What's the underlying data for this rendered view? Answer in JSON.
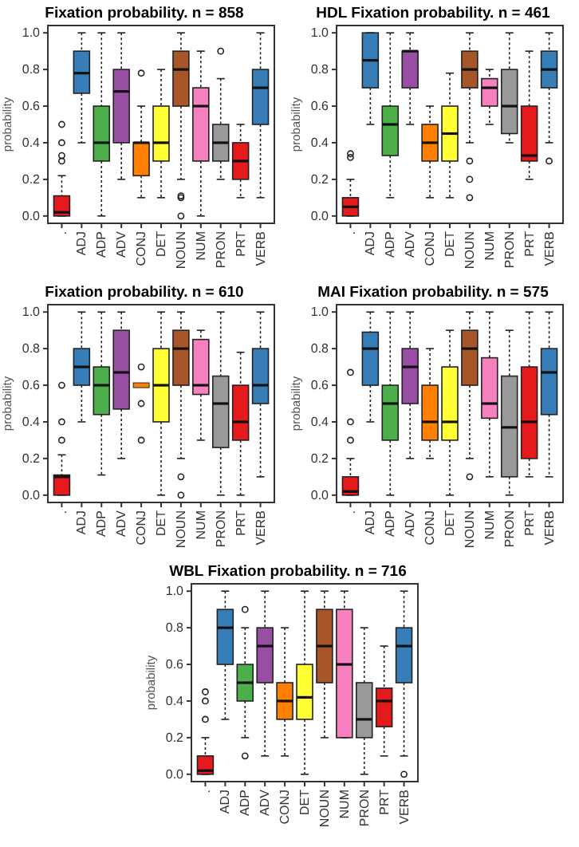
{
  "chart_data": [
    {
      "type": "box",
      "title": "Fixation probability. n = 858",
      "ylabel": "probability",
      "categories": [
        ".",
        "ADJ",
        "ADP",
        "ADV",
        "CONJ",
        "DET",
        "NOUN",
        "NUM",
        "PRON",
        "PRT",
        "VERB"
      ],
      "colors": [
        "#e41a1c",
        "#377eb8",
        "#4daf4a",
        "#984ea3",
        "#ff7f00",
        "#ffff33",
        "#a65628",
        "#f781bf",
        "#999999",
        "#e41a1c",
        "#377eb8"
      ],
      "ylim": [
        -0.04,
        1.04
      ],
      "yticks": [
        {
          "value": 0,
          "label": "0.0"
        },
        {
          "value": 0.2,
          "label": "0.2"
        },
        {
          "value": 0.4,
          "label": "0.4"
        },
        {
          "value": 0.6,
          "label": "0.6"
        },
        {
          "value": 0.8,
          "label": "0.8"
        },
        {
          "value": 1,
          "label": "1.0"
        }
      ],
      "boxes": [
        {
          "low": 0,
          "q1": 0,
          "median": 0.02,
          "q3": 0.11,
          "high": 0.22,
          "outliers": [
            0.3,
            0.33,
            0.4,
            0.5
          ]
        },
        {
          "low": 0.4,
          "q1": 0.67,
          "median": 0.78,
          "q3": 0.9,
          "high": 1
        },
        {
          "low": 0,
          "q1": 0.3,
          "median": 0.4,
          "q3": 0.6,
          "high": 1
        },
        {
          "low": 0.2,
          "q1": 0.4,
          "median": 0.68,
          "q3": 0.8,
          "high": 1
        },
        {
          "low": 0.1,
          "q1": 0.22,
          "median": 0.4,
          "q3": 0.4,
          "high": 0.6,
          "outliers": [
            0.78
          ]
        },
        {
          "low": 0.1,
          "q1": 0.3,
          "median": 0.4,
          "q3": 0.6,
          "high": 0.8
        },
        {
          "low": 0.2,
          "q1": 0.6,
          "median": 0.8,
          "q3": 0.9,
          "high": 1,
          "outliers": [
            0,
            0.1,
            0.11
          ]
        },
        {
          "low": 0,
          "q1": 0.3,
          "median": 0.6,
          "q3": 0.7,
          "high": 0.9
        },
        {
          "low": 0.2,
          "q1": 0.3,
          "median": 0.4,
          "q3": 0.5,
          "high": 0.75,
          "outliers": [
            0.9
          ]
        },
        {
          "low": 0.1,
          "q1": 0.2,
          "median": 0.3,
          "q3": 0.4,
          "high": 0.5
        },
        {
          "low": 0.1,
          "q1": 0.5,
          "median": 0.7,
          "q3": 0.8,
          "high": 1
        }
      ]
    },
    {
      "type": "box",
      "title": "HDL Fixation probability. n = 461",
      "ylabel": "probability",
      "categories": [
        ".",
        "ADJ",
        "ADP",
        "ADV",
        "CONJ",
        "DET",
        "NOUN",
        "NUM",
        "PRON",
        "PRT",
        "VERB"
      ],
      "colors": [
        "#e41a1c",
        "#377eb8",
        "#4daf4a",
        "#984ea3",
        "#ff7f00",
        "#ffff33",
        "#a65628",
        "#f781bf",
        "#999999",
        "#e41a1c",
        "#377eb8"
      ],
      "ylim": [
        -0.04,
        1.04
      ],
      "yticks": [
        {
          "value": 0,
          "label": "0.0"
        },
        {
          "value": 0.2,
          "label": "0.2"
        },
        {
          "value": 0.4,
          "label": "0.4"
        },
        {
          "value": 0.6,
          "label": "0.6"
        },
        {
          "value": 0.8,
          "label": "0.8"
        },
        {
          "value": 1,
          "label": "1.0"
        }
      ],
      "boxes": [
        {
          "low": 0,
          "q1": 0,
          "median": 0.05,
          "q3": 0.1,
          "high": 0.2,
          "outliers": [
            0.32,
            0.34
          ]
        },
        {
          "low": 0.5,
          "q1": 0.7,
          "median": 0.85,
          "q3": 1,
          "high": 1
        },
        {
          "low": 0.1,
          "q1": 0.33,
          "median": 0.5,
          "q3": 0.6,
          "high": 1
        },
        {
          "low": 0.5,
          "q1": 0.7,
          "median": 0.9,
          "q3": 0.9,
          "high": 1
        },
        {
          "low": 0.1,
          "q1": 0.3,
          "median": 0.4,
          "q3": 0.5,
          "high": 0.6
        },
        {
          "low": 0.1,
          "q1": 0.3,
          "median": 0.45,
          "q3": 0.6,
          "high": 0.78
        },
        {
          "low": 0.4,
          "q1": 0.7,
          "median": 0.8,
          "q3": 0.9,
          "high": 1,
          "outliers": [
            0.3,
            0.2,
            0.1
          ]
        },
        {
          "low": 0.5,
          "q1": 0.6,
          "median": 0.7,
          "q3": 0.75,
          "high": 0.8
        },
        {
          "low": 0.4,
          "q1": 0.45,
          "median": 0.6,
          "q3": 0.8,
          "high": 1
        },
        {
          "low": 0.2,
          "q1": 0.3,
          "median": 0.33,
          "q3": 0.6,
          "high": 0.9
        },
        {
          "low": 0.4,
          "q1": 0.7,
          "median": 0.8,
          "q3": 0.9,
          "high": 1,
          "outliers": [
            0.3
          ]
        }
      ]
    },
    {
      "type": "box",
      "title": "Fixation probability. n = 610",
      "ylabel": "probability",
      "categories": [
        ".",
        "ADJ",
        "ADP",
        "ADV",
        "CONJ",
        "DET",
        "NOUN",
        "NUM",
        "PRON",
        "PRT",
        "VERB"
      ],
      "colors": [
        "#e41a1c",
        "#377eb8",
        "#4daf4a",
        "#984ea3",
        "#ff7f00",
        "#ffff33",
        "#a65628",
        "#f781bf",
        "#999999",
        "#e41a1c",
        "#377eb8"
      ],
      "ylim": [
        -0.04,
        1.04
      ],
      "yticks": [
        {
          "value": 0,
          "label": "0.0"
        },
        {
          "value": 0.2,
          "label": "0.2"
        },
        {
          "value": 0.4,
          "label": "0.4"
        },
        {
          "value": 0.6,
          "label": "0.6"
        },
        {
          "value": 0.8,
          "label": "0.8"
        },
        {
          "value": 1,
          "label": "1.0"
        }
      ],
      "boxes": [
        {
          "low": 0,
          "q1": 0,
          "median": 0.1,
          "q3": 0.11,
          "high": 0.22,
          "outliers": [
            0.3,
            0.4,
            0.6
          ]
        },
        {
          "low": 0.4,
          "q1": 0.6,
          "median": 0.7,
          "q3": 0.8,
          "high": 1
        },
        {
          "low": 0.11,
          "q1": 0.44,
          "median": 0.6,
          "q3": 0.7,
          "high": 1
        },
        {
          "low": 0.2,
          "q1": 0.47,
          "median": 0.67,
          "q3": 0.9,
          "high": 1
        },
        {
          "low": 0.6,
          "q1": 0.6,
          "median": 0.6,
          "q3": 0.6,
          "high": 0.6,
          "outliers": [
            0.7,
            0.5,
            0.3
          ]
        },
        {
          "low": 0,
          "q1": 0.4,
          "median": 0.6,
          "q3": 0.8,
          "high": 1
        },
        {
          "low": 0.2,
          "q1": 0.6,
          "median": 0.8,
          "q3": 0.9,
          "high": 1,
          "outliers": [
            0.1,
            0
          ]
        },
        {
          "low": 0.3,
          "q1": 0.55,
          "median": 0.6,
          "q3": 0.85,
          "high": 0.9
        },
        {
          "low": 0,
          "q1": 0.26,
          "median": 0.5,
          "q3": 0.65,
          "high": 1
        },
        {
          "low": 0,
          "q1": 0.3,
          "median": 0.4,
          "q3": 0.6,
          "high": 0.78
        },
        {
          "low": 0.1,
          "q1": 0.5,
          "median": 0.6,
          "q3": 0.8,
          "high": 1
        }
      ]
    },
    {
      "type": "box",
      "title": "MAI Fixation probability. n = 575",
      "ylabel": "probability",
      "categories": [
        ".",
        "ADJ",
        "ADP",
        "ADV",
        "CONJ",
        "DET",
        "NOUN",
        "NUM",
        "PRON",
        "PRT",
        "VERB"
      ],
      "colors": [
        "#e41a1c",
        "#377eb8",
        "#4daf4a",
        "#984ea3",
        "#ff7f00",
        "#ffff33",
        "#a65628",
        "#f781bf",
        "#999999",
        "#e41a1c",
        "#377eb8"
      ],
      "ylim": [
        -0.04,
        1.04
      ],
      "yticks": [
        {
          "value": 0,
          "label": "0.0"
        },
        {
          "value": 0.2,
          "label": "0.2"
        },
        {
          "value": 0.4,
          "label": "0.4"
        },
        {
          "value": 0.6,
          "label": "0.6"
        },
        {
          "value": 0.8,
          "label": "0.8"
        },
        {
          "value": 1,
          "label": "1.0"
        }
      ],
      "boxes": [
        {
          "low": 0,
          "q1": 0,
          "median": 0.02,
          "q3": 0.1,
          "high": 0.2,
          "outliers": [
            0.3,
            0.4,
            0.67
          ]
        },
        {
          "low": 0.4,
          "q1": 0.6,
          "median": 0.8,
          "q3": 0.89,
          "high": 1
        },
        {
          "low": 0,
          "q1": 0.3,
          "median": 0.5,
          "q3": 0.6,
          "high": 1
        },
        {
          "low": 0.2,
          "q1": 0.5,
          "median": 0.7,
          "q3": 0.8,
          "high": 1
        },
        {
          "low": 0.2,
          "q1": 0.3,
          "median": 0.4,
          "q3": 0.6,
          "high": 0.8
        },
        {
          "low": 0,
          "q1": 0.3,
          "median": 0.4,
          "q3": 0.7,
          "high": 0.9
        },
        {
          "low": 0.2,
          "q1": 0.6,
          "median": 0.8,
          "q3": 0.9,
          "high": 1,
          "outliers": [
            0.1
          ]
        },
        {
          "low": 0.1,
          "q1": 0.42,
          "median": 0.5,
          "q3": 0.75,
          "high": 1
        },
        {
          "low": 0,
          "q1": 0.1,
          "median": 0.37,
          "q3": 0.65,
          "high": 0.9
        },
        {
          "low": 0.1,
          "q1": 0.2,
          "median": 0.4,
          "q3": 0.7,
          "high": 1
        },
        {
          "low": 0.1,
          "q1": 0.44,
          "median": 0.67,
          "q3": 0.8,
          "high": 1
        }
      ]
    },
    {
      "type": "box",
      "title": "WBL Fixation probability. n = 716",
      "ylabel": "probability",
      "categories": [
        ".",
        "ADJ",
        "ADP",
        "ADV",
        "CONJ",
        "DET",
        "NOUN",
        "NUM",
        "PRON",
        "PRT",
        "VERB"
      ],
      "colors": [
        "#e41a1c",
        "#377eb8",
        "#4daf4a",
        "#984ea3",
        "#ff7f00",
        "#ffff33",
        "#a65628",
        "#f781bf",
        "#999999",
        "#e41a1c",
        "#377eb8"
      ],
      "ylim": [
        -0.04,
        1.04
      ],
      "yticks": [
        {
          "value": 0,
          "label": "0.0"
        },
        {
          "value": 0.2,
          "label": "0.2"
        },
        {
          "value": 0.4,
          "label": "0.4"
        },
        {
          "value": 0.6,
          "label": "0.6"
        },
        {
          "value": 0.8,
          "label": "0.8"
        },
        {
          "value": 1,
          "label": "1.0"
        }
      ],
      "boxes": [
        {
          "low": 0,
          "q1": 0,
          "median": 0.02,
          "q3": 0.1,
          "high": 0.2,
          "outliers": [
            0.3,
            0.4,
            0.45
          ]
        },
        {
          "low": 0.3,
          "q1": 0.6,
          "median": 0.8,
          "q3": 0.9,
          "high": 1
        },
        {
          "low": 0.2,
          "q1": 0.4,
          "median": 0.5,
          "q3": 0.6,
          "high": 0.8,
          "outliers": [
            0.1,
            0.9
          ]
        },
        {
          "low": 0.1,
          "q1": 0.5,
          "median": 0.7,
          "q3": 0.8,
          "high": 1
        },
        {
          "low": 0.1,
          "q1": 0.3,
          "median": 0.4,
          "q3": 0.5,
          "high": 0.8
        },
        {
          "low": 0,
          "q1": 0.3,
          "median": 0.42,
          "q3": 0.6,
          "high": 1
        },
        {
          "low": 0.2,
          "q1": 0.5,
          "median": 0.7,
          "q3": 0.9,
          "high": 1
        },
        {
          "low": 0.2,
          "q1": 0.2,
          "median": 0.6,
          "q3": 0.9,
          "high": 1
        },
        {
          "low": 0,
          "q1": 0.2,
          "median": 0.3,
          "q3": 0.5,
          "high": 0.8
        },
        {
          "low": 0.1,
          "q1": 0.26,
          "median": 0.4,
          "q3": 0.47,
          "high": 0.7
        },
        {
          "low": 0.1,
          "q1": 0.5,
          "median": 0.7,
          "q3": 0.8,
          "high": 1,
          "outliers": [
            0
          ]
        }
      ]
    }
  ]
}
